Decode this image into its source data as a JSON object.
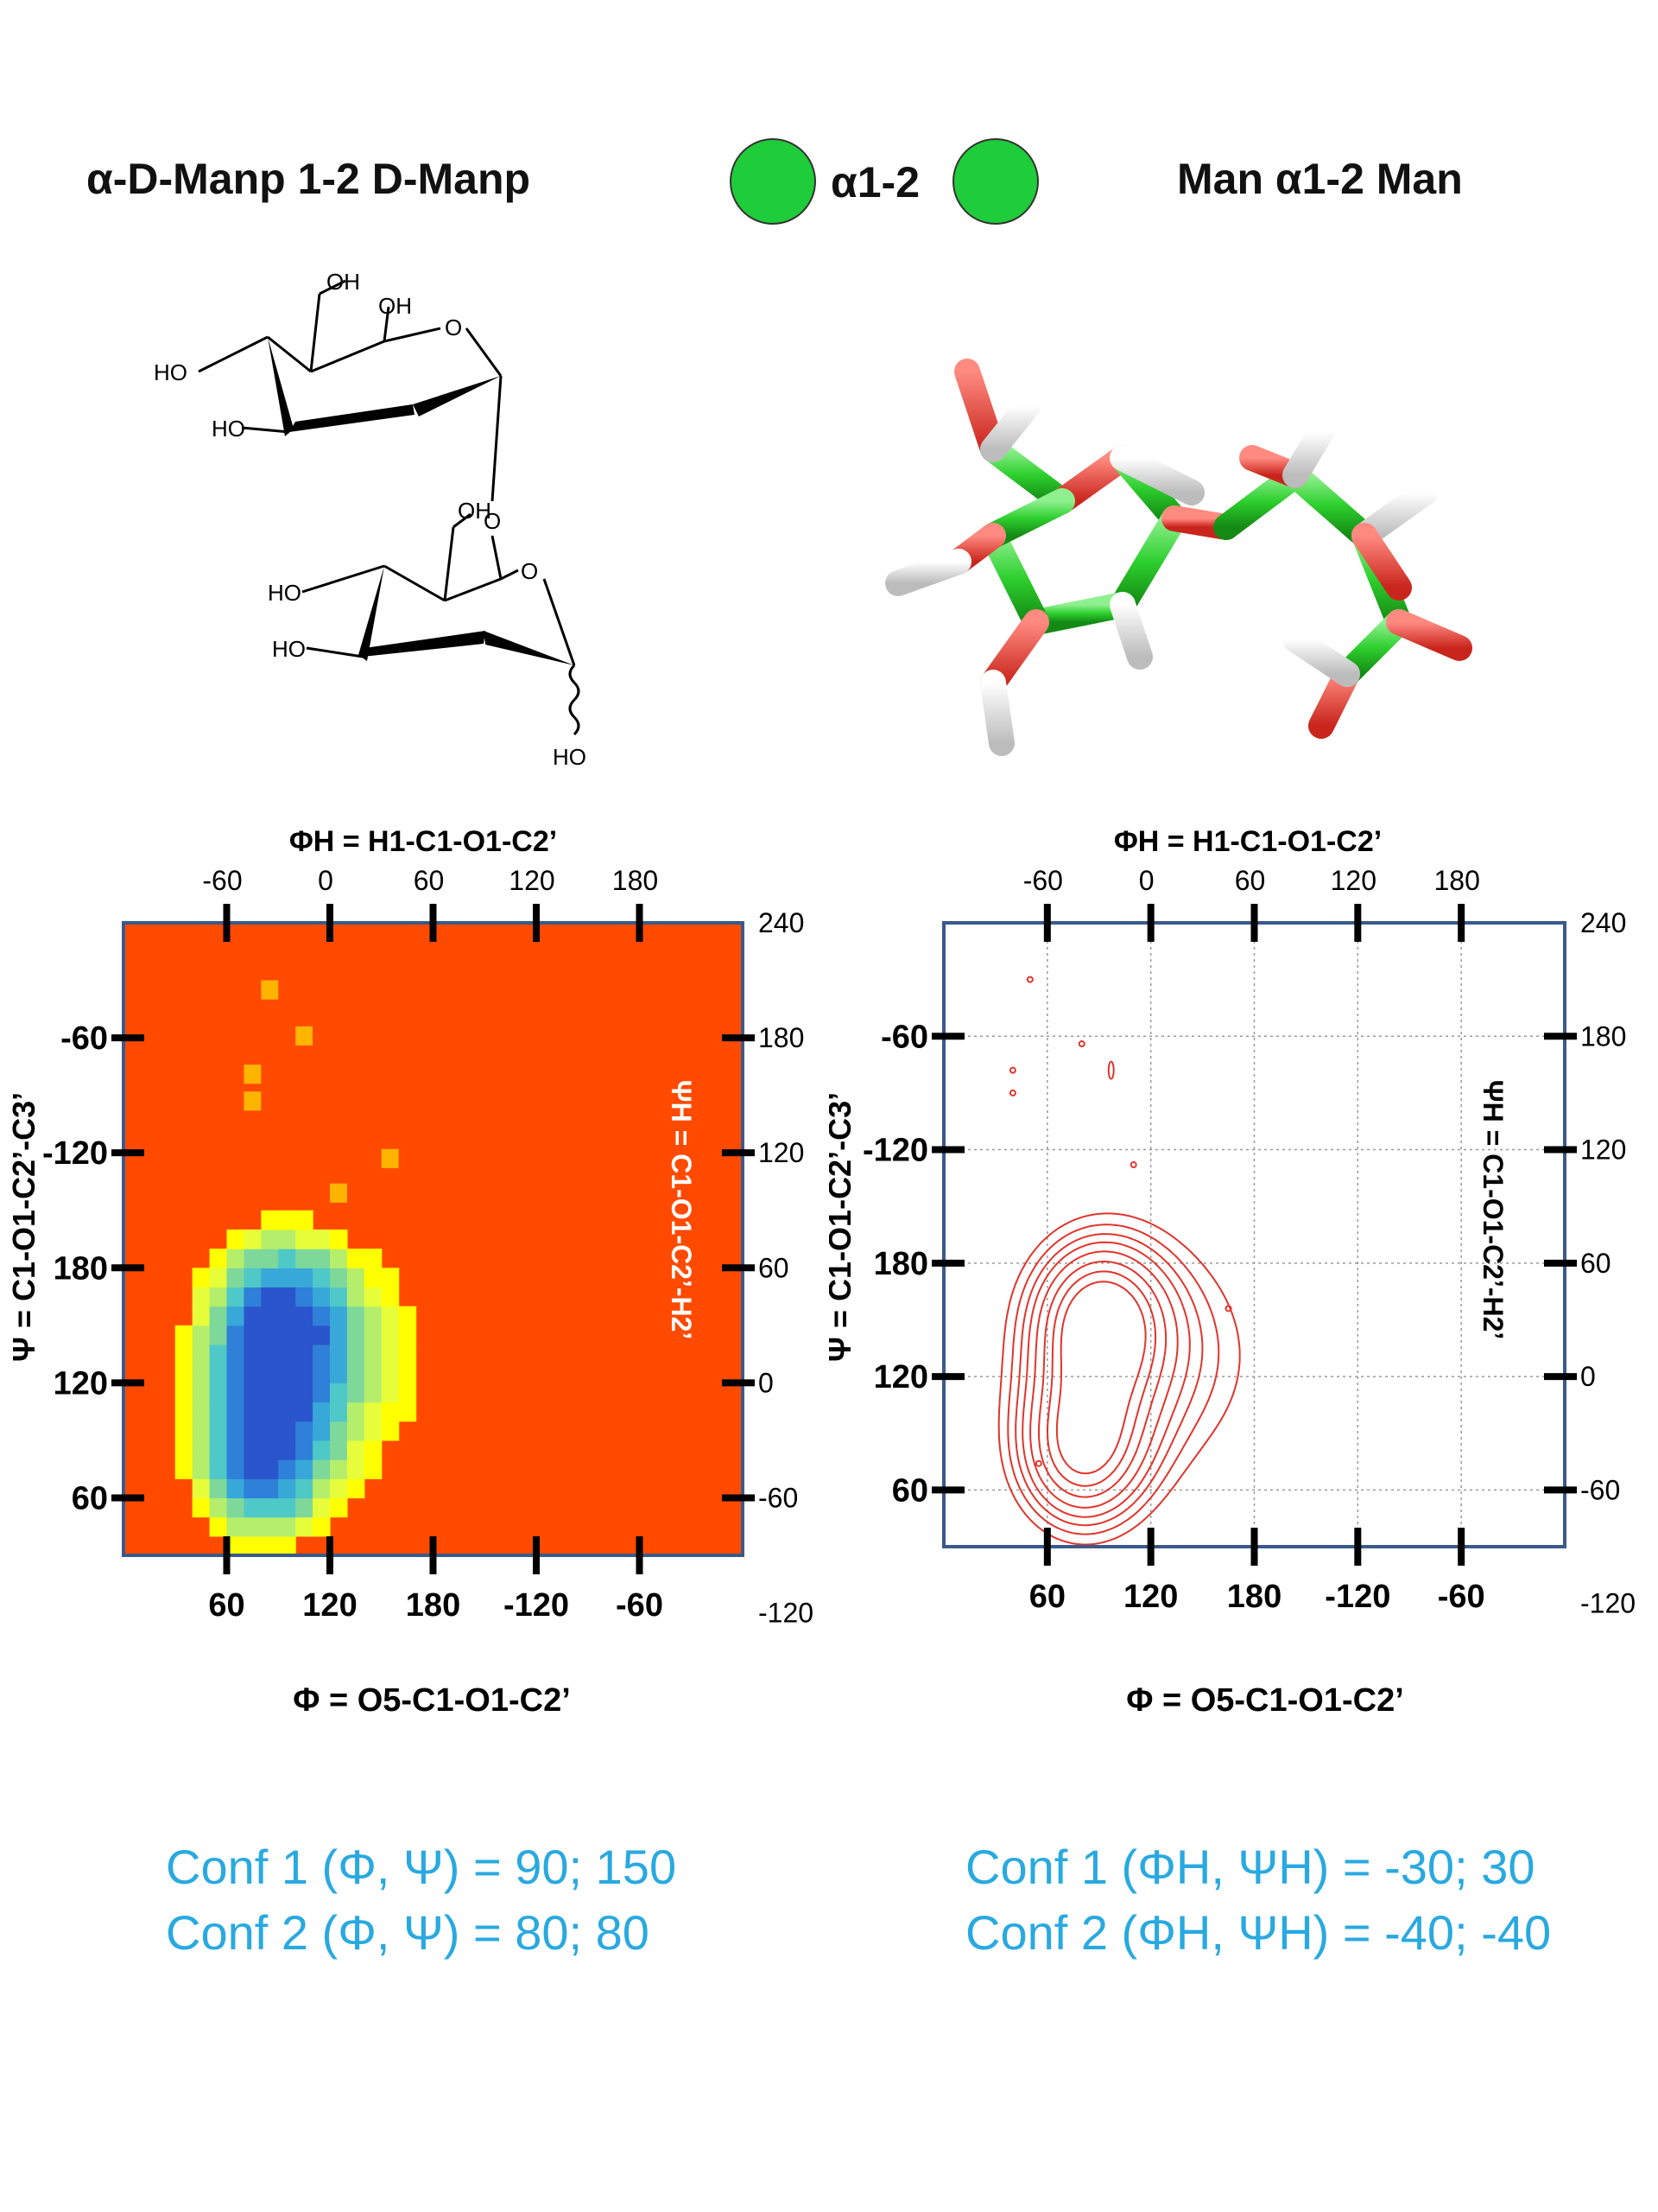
{
  "header": {
    "left_title": "α-D-Manp 1-2 D-Manp",
    "center_label": "α1-2",
    "right_title": "Man α1-2 Man",
    "accent_green": "#1fcc3a"
  },
  "structure": {
    "oh_labels": [
      "OH",
      "OH",
      "O",
      "HO",
      "HO",
      "O",
      "OH",
      "O",
      "HO",
      "HO",
      "HO"
    ]
  },
  "chart_data": [
    {
      "type": "heatmap",
      "title": "",
      "top_label": "ΦH = H1-C1-O1-C2’",
      "bottom_label": "Φ = O5-C1-O1-C2’",
      "left_label": "Ψ = C1-O1-C2’-C3’",
      "right_label": "ΨH = C1-O1-C2’-H2’",
      "top_ticks": [
        "-60",
        "0",
        "60",
        "120",
        "180"
      ],
      "bottom_ticks": [
        "60",
        "120",
        "180",
        "-120",
        "-60"
      ],
      "left_ticks": [
        "-60",
        "-120",
        "180",
        "120",
        "60"
      ],
      "right_ticks": [
        "240",
        "180",
        "120",
        "60",
        "0",
        "-60",
        "-120"
      ],
      "xlim": [
        0,
        360
      ],
      "ylim": [
        30,
        360
      ],
      "background_color": "#ff4a00",
      "minima": [
        {
          "x": 90,
          "y": 150
        },
        {
          "x": 80,
          "y": 80
        }
      ]
    },
    {
      "type": "contour",
      "title": "",
      "top_label": "ΦH = H1-C1-O1-C2’",
      "bottom_label": "Φ = O5-C1-O1-C2’",
      "left_label": "Ψ = C1-O1-C2’-C3’",
      "right_label": "ΨH = C1-O1-C2’-H2’",
      "top_ticks": [
        "-60",
        "0",
        "60",
        "120",
        "180"
      ],
      "bottom_ticks": [
        "60",
        "120",
        "180",
        "-120",
        "-60"
      ],
      "left_ticks": [
        "-60",
        "-120",
        "180",
        "120",
        "60"
      ],
      "right_ticks": [
        "240",
        "180",
        "120",
        "60",
        "0",
        "-60",
        "-120"
      ],
      "xlim": [
        0,
        360
      ],
      "ylim": [
        30,
        360
      ],
      "grid": true,
      "line_color": "#e0342c",
      "minima": [
        {
          "x": 90,
          "y": 150
        },
        {
          "x": 80,
          "y": 80
        }
      ]
    }
  ],
  "conformations": {
    "left": [
      "Conf 1 (Φ, Ψ) = 90; 150",
      "Conf 2 (Φ, Ψ) =  80; 80"
    ],
    "right": [
      "Conf 1 (ΦH, ΨH) = -30; 30",
      "Conf 2 (ΦH, ΨH) = -40; -40"
    ]
  }
}
